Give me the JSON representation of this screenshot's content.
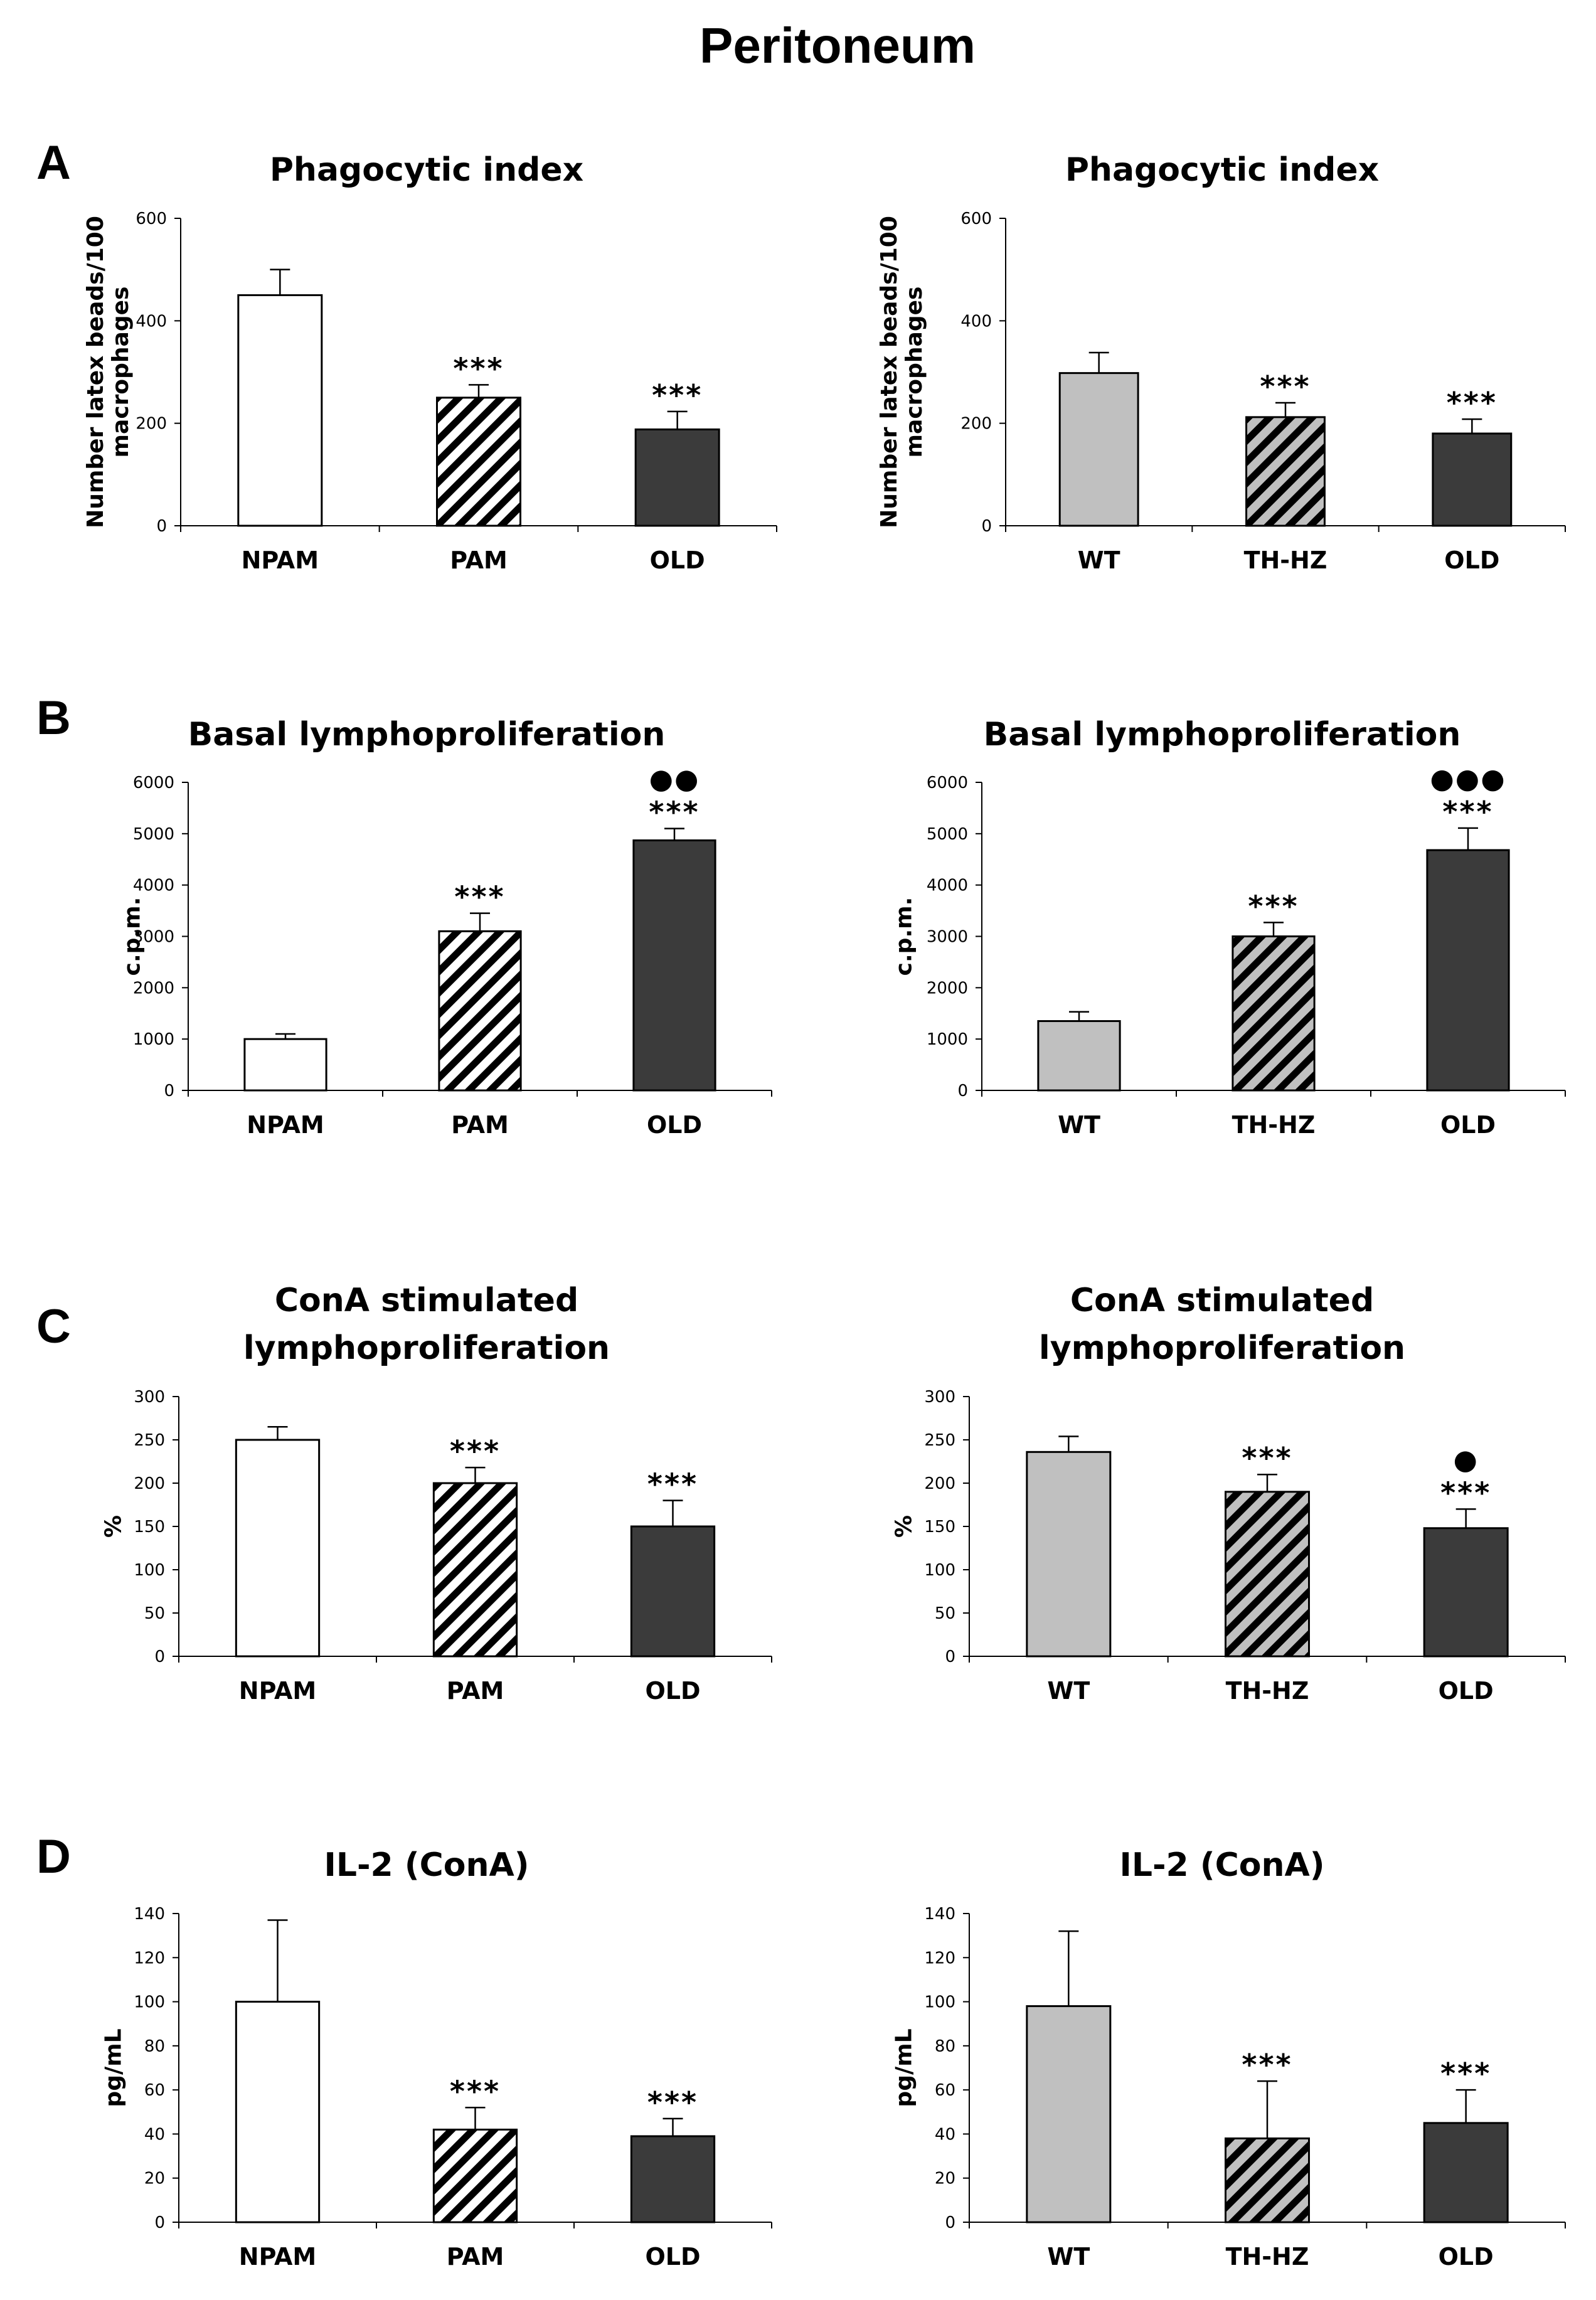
{
  "figure": {
    "title": "Peritoneum"
  },
  "colors": {
    "white": "#ffffff",
    "gray": "#c0c0c0",
    "dark": "#3b3b3b",
    "stroke": "#000000"
  },
  "chart_data": [
    {
      "id": "A-left",
      "panel": "A",
      "type": "bar",
      "title": [
        "Phagocytic index"
      ],
      "ylabel": [
        "Number latex beads/100",
        "macrophages"
      ],
      "xlabel": "",
      "ylim": [
        0,
        600
      ],
      "yticks": [
        0,
        200,
        400,
        600
      ],
      "grid": false,
      "categories": [
        "NPAM",
        "PAM",
        "OLD"
      ],
      "values": [
        450,
        250,
        188
      ],
      "errors": [
        50,
        25,
        35
      ],
      "fills": [
        "white",
        "hatch",
        "dark"
      ],
      "significance": [
        "",
        "***",
        "***"
      ],
      "dots": [
        "",
        "",
        ""
      ]
    },
    {
      "id": "A-right",
      "panel": "A",
      "type": "bar",
      "title": [
        "Phagocytic index"
      ],
      "ylabel": [
        "Number latex beads/100",
        "macrophages"
      ],
      "xlabel": "",
      "ylim": [
        0,
        600
      ],
      "yticks": [
        0,
        200,
        400,
        600
      ],
      "grid": false,
      "categories": [
        "WT",
        "TH-HZ",
        "OLD"
      ],
      "values": [
        298,
        212,
        180
      ],
      "errors": [
        40,
        28,
        28
      ],
      "fills": [
        "gray",
        "hatchgray",
        "dark"
      ],
      "significance": [
        "",
        "***",
        "***"
      ],
      "dots": [
        "",
        "",
        ""
      ]
    },
    {
      "id": "B-left",
      "panel": "B",
      "type": "bar",
      "title": [
        "Basal lymphoproliferation"
      ],
      "ylabel": [
        "c.p.m."
      ],
      "xlabel": "",
      "ylim": [
        0,
        6000
      ],
      "yticks": [
        0,
        1000,
        2000,
        3000,
        4000,
        5000,
        6000
      ],
      "grid": false,
      "categories": [
        "NPAM",
        "PAM",
        "OLD"
      ],
      "values": [
        1000,
        3100,
        4870
      ],
      "errors": [
        100,
        350,
        230
      ],
      "fills": [
        "white",
        "hatch",
        "dark"
      ],
      "significance": [
        "",
        "***",
        "***"
      ],
      "dots": [
        "",
        "",
        "●●"
      ]
    },
    {
      "id": "B-right",
      "panel": "B",
      "type": "bar",
      "title": [
        "Basal lymphoproliferation"
      ],
      "ylabel": [
        "c.p.m."
      ],
      "xlabel": "",
      "ylim": [
        0,
        6000
      ],
      "yticks": [
        0,
        1000,
        2000,
        3000,
        4000,
        5000,
        6000
      ],
      "grid": false,
      "categories": [
        "WT",
        "TH-HZ",
        "OLD"
      ],
      "values": [
        1350,
        3000,
        4680
      ],
      "errors": [
        180,
        270,
        430
      ],
      "fills": [
        "gray",
        "hatchgray",
        "dark"
      ],
      "significance": [
        "",
        "***",
        "***"
      ],
      "dots": [
        "",
        "",
        "●●●"
      ]
    },
    {
      "id": "C-left",
      "panel": "C",
      "type": "bar",
      "title": [
        "ConA stimulated",
        "lymphoproliferation"
      ],
      "ylabel": [
        "%"
      ],
      "xlabel": "",
      "ylim": [
        0,
        300
      ],
      "yticks": [
        0,
        50,
        100,
        150,
        200,
        250,
        300
      ],
      "grid": false,
      "categories": [
        "NPAM",
        "PAM",
        "OLD"
      ],
      "values": [
        250,
        200,
        150
      ],
      "errors": [
        15,
        18,
        30
      ],
      "fills": [
        "white",
        "hatch",
        "dark"
      ],
      "significance": [
        "",
        "***",
        "***"
      ],
      "dots": [
        "",
        "",
        ""
      ]
    },
    {
      "id": "C-right",
      "panel": "C",
      "type": "bar",
      "title": [
        "ConA stimulated",
        "lymphoproliferation"
      ],
      "ylabel": [
        "%"
      ],
      "xlabel": "",
      "ylim": [
        0,
        300
      ],
      "yticks": [
        0,
        50,
        100,
        150,
        200,
        250,
        300
      ],
      "grid": false,
      "categories": [
        "WT",
        "TH-HZ",
        "OLD"
      ],
      "values": [
        236,
        190,
        148
      ],
      "errors": [
        18,
        20,
        22
      ],
      "fills": [
        "gray",
        "hatchgray",
        "dark"
      ],
      "significance": [
        "",
        "***",
        "***"
      ],
      "dots": [
        "",
        "",
        "●"
      ]
    },
    {
      "id": "D-left",
      "panel": "D",
      "type": "bar",
      "title": [
        "IL-2 (ConA)"
      ],
      "ylabel": [
        "pg/mL"
      ],
      "xlabel": "",
      "ylim": [
        0,
        140
      ],
      "yticks": [
        0,
        20,
        40,
        60,
        80,
        100,
        120,
        140
      ],
      "grid": false,
      "categories": [
        "NPAM",
        "PAM",
        "OLD"
      ],
      "values": [
        100,
        42,
        39
      ],
      "errors": [
        37,
        10,
        8
      ],
      "fills": [
        "white",
        "hatch",
        "dark"
      ],
      "significance": [
        "",
        "***",
        "***"
      ],
      "dots": [
        "",
        "",
        ""
      ]
    },
    {
      "id": "D-right",
      "panel": "D",
      "type": "bar",
      "title": [
        "IL-2 (ConA)"
      ],
      "ylabel": [
        "pg/mL"
      ],
      "xlabel": "",
      "ylim": [
        0,
        140
      ],
      "yticks": [
        0,
        20,
        40,
        60,
        80,
        100,
        120,
        140
      ],
      "grid": false,
      "categories": [
        "WT",
        "TH-HZ",
        "OLD"
      ],
      "values": [
        98,
        38,
        45
      ],
      "errors": [
        34,
        26,
        15
      ],
      "fills": [
        "gray",
        "hatchgray",
        "dark"
      ],
      "significance": [
        "",
        "***",
        "***"
      ],
      "dots": [
        "",
        "",
        ""
      ]
    }
  ]
}
